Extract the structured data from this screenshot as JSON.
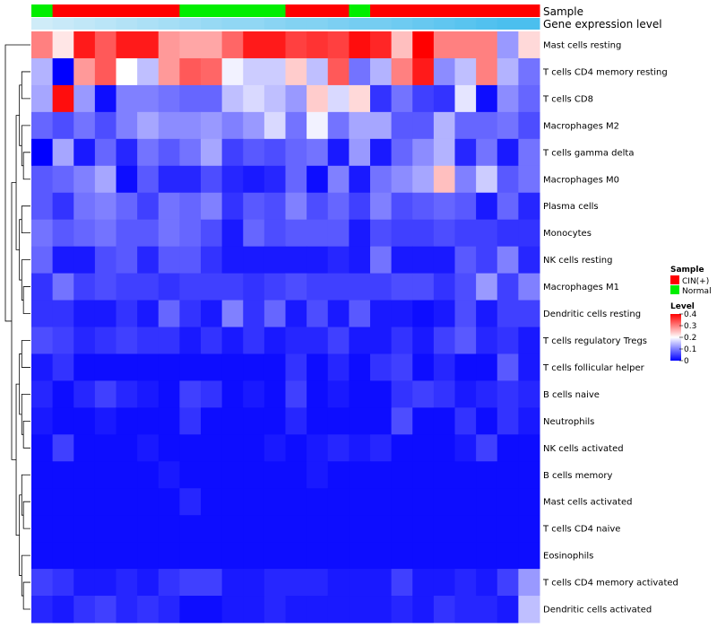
{
  "chart_data": {
    "type": "heatmap",
    "title": "",
    "annotation_tracks": [
      "Sample",
      "Gene expression level"
    ],
    "sample_groups": [
      "Normal",
      "CIN(+)",
      "CIN(+)",
      "CIN(+)",
      "CIN(+)",
      "CIN(+)",
      "CIN(+)",
      "Normal",
      "Normal",
      "Normal",
      "Normal",
      "Normal",
      "CIN(+)",
      "CIN(+)",
      "CIN(+)",
      "Normal",
      "CIN(+)",
      "CIN(+)",
      "CIN(+)",
      "CIN(+)",
      "CIN(+)",
      "CIN(+)",
      "CIN(+)",
      "CIN(+)"
    ],
    "gene_expression_level": [
      0.05,
      0.1,
      0.15,
      0.2,
      0.25,
      0.3,
      0.35,
      0.4,
      0.45,
      0.5,
      0.5,
      0.55,
      0.6,
      0.6,
      0.65,
      0.7,
      0.7,
      0.75,
      0.8,
      0.85,
      0.9,
      0.95,
      1.0,
      1.0
    ],
    "rows": [
      "Mast cells resting",
      "T cells CD4 memory resting",
      "T cells CD8",
      "Macrophages M2",
      "T cells gamma delta",
      "Macrophages M0",
      "Plasma cells",
      "Monocytes",
      "NK cells resting",
      "Macrophages M1",
      "Dendritic cells resting",
      "T cells regulatory  Tregs",
      "T cells follicular helper",
      "B cells naive",
      "Neutrophils",
      "NK cells activated",
      "B cells memory",
      "Mast cells activated",
      "T cells CD4 naive",
      "Eosinophils",
      "T cells CD4 memory activated",
      "Dendritic cells activated"
    ],
    "values": [
      [
        0.3,
        0.22,
        0.38,
        0.33,
        0.38,
        0.38,
        0.28,
        0.27,
        0.27,
        0.32,
        0.38,
        0.38,
        0.35,
        0.36,
        0.35,
        0.39,
        0.37,
        0.25,
        0.4,
        0.3,
        0.3,
        0.3,
        0.12,
        0.23
      ],
      [
        0.14,
        0.0,
        0.28,
        0.33,
        0.2,
        0.15,
        0.28,
        0.33,
        0.32,
        0.19,
        0.16,
        0.16,
        0.24,
        0.15,
        0.33,
        0.09,
        0.14,
        0.3,
        0.38,
        0.11,
        0.15,
        0.3,
        0.14,
        0.09
      ],
      [
        0.13,
        0.39,
        0.12,
        0.01,
        0.1,
        0.1,
        0.09,
        0.08,
        0.08,
        0.15,
        0.17,
        0.15,
        0.12,
        0.24,
        0.17,
        0.23,
        0.04,
        0.09,
        0.05,
        0.04,
        0.18,
        0.01,
        0.11,
        0.08
      ],
      [
        0.08,
        0.06,
        0.09,
        0.06,
        0.1,
        0.13,
        0.11,
        0.11,
        0.12,
        0.1,
        0.12,
        0.17,
        0.09,
        0.19,
        0.09,
        0.13,
        0.13,
        0.07,
        0.07,
        0.14,
        0.08,
        0.08,
        0.09,
        0.06
      ],
      [
        0.0,
        0.13,
        0.02,
        0.08,
        0.03,
        0.09,
        0.07,
        0.09,
        0.13,
        0.05,
        0.07,
        0.06,
        0.08,
        0.09,
        0.02,
        0.12,
        0.02,
        0.08,
        0.11,
        0.14,
        0.03,
        0.09,
        0.02,
        0.09
      ],
      [
        0.07,
        0.08,
        0.1,
        0.13,
        0.01,
        0.07,
        0.03,
        0.03,
        0.06,
        0.03,
        0.02,
        0.03,
        0.08,
        0.01,
        0.1,
        0.02,
        0.09,
        0.11,
        0.13,
        0.25,
        0.1,
        0.16,
        0.07,
        0.09
      ],
      [
        0.07,
        0.04,
        0.09,
        0.1,
        0.08,
        0.05,
        0.09,
        0.08,
        0.1,
        0.04,
        0.07,
        0.06,
        0.1,
        0.06,
        0.08,
        0.05,
        0.1,
        0.06,
        0.07,
        0.08,
        0.07,
        0.02,
        0.08,
        0.03
      ],
      [
        0.09,
        0.07,
        0.08,
        0.09,
        0.07,
        0.07,
        0.09,
        0.08,
        0.06,
        0.02,
        0.08,
        0.06,
        0.07,
        0.07,
        0.07,
        0.02,
        0.06,
        0.05,
        0.05,
        0.06,
        0.05,
        0.05,
        0.04,
        0.04
      ],
      [
        0.08,
        0.02,
        0.02,
        0.06,
        0.07,
        0.03,
        0.07,
        0.07,
        0.04,
        0.02,
        0.02,
        0.02,
        0.02,
        0.02,
        0.03,
        0.02,
        0.09,
        0.02,
        0.02,
        0.02,
        0.07,
        0.05,
        0.1,
        0.03
      ],
      [
        0.04,
        0.09,
        0.05,
        0.06,
        0.05,
        0.05,
        0.04,
        0.05,
        0.05,
        0.05,
        0.04,
        0.05,
        0.06,
        0.05,
        0.05,
        0.05,
        0.05,
        0.06,
        0.06,
        0.04,
        0.06,
        0.12,
        0.05,
        0.1
      ],
      [
        0.04,
        0.04,
        0.02,
        0.02,
        0.04,
        0.02,
        0.08,
        0.04,
        0.02,
        0.1,
        0.04,
        0.08,
        0.02,
        0.06,
        0.02,
        0.07,
        0.02,
        0.02,
        0.01,
        0.02,
        0.06,
        0.02,
        0.05,
        0.05
      ],
      [
        0.06,
        0.05,
        0.03,
        0.04,
        0.05,
        0.04,
        0.04,
        0.02,
        0.04,
        0.02,
        0.04,
        0.02,
        0.03,
        0.03,
        0.05,
        0.02,
        0.02,
        0.04,
        0.02,
        0.05,
        0.07,
        0.03,
        0.04,
        0.02
      ],
      [
        0.02,
        0.04,
        0.01,
        0.01,
        0.01,
        0.01,
        0.01,
        0.01,
        0.01,
        0.01,
        0.01,
        0.01,
        0.04,
        0.01,
        0.03,
        0.01,
        0.04,
        0.05,
        0.01,
        0.03,
        0.01,
        0.01,
        0.07,
        0.02
      ],
      [
        0.03,
        0.01,
        0.03,
        0.05,
        0.03,
        0.02,
        0.01,
        0.05,
        0.04,
        0.01,
        0.02,
        0.01,
        0.05,
        0.01,
        0.02,
        0.01,
        0.01,
        0.04,
        0.05,
        0.04,
        0.02,
        0.03,
        0.04,
        0.03
      ],
      [
        0.02,
        0.01,
        0.01,
        0.02,
        0.01,
        0.01,
        0.01,
        0.04,
        0.01,
        0.01,
        0.01,
        0.01,
        0.03,
        0.01,
        0.01,
        0.01,
        0.01,
        0.06,
        0.01,
        0.01,
        0.04,
        0.01,
        0.04,
        0.02
      ],
      [
        0.01,
        0.05,
        0.01,
        0.01,
        0.01,
        0.02,
        0.01,
        0.01,
        0.01,
        0.01,
        0.01,
        0.02,
        0.01,
        0.02,
        0.03,
        0.02,
        0.03,
        0.01,
        0.01,
        0.01,
        0.02,
        0.05,
        0.01,
        0.01
      ],
      [
        0.01,
        0.01,
        0.01,
        0.01,
        0.01,
        0.01,
        0.02,
        0.01,
        0.01,
        0.01,
        0.01,
        0.01,
        0.01,
        0.02,
        0.01,
        0.01,
        0.01,
        0.01,
        0.01,
        0.01,
        0.01,
        0.01,
        0.01,
        0.01
      ],
      [
        0.01,
        0.01,
        0.01,
        0.01,
        0.01,
        0.01,
        0.01,
        0.03,
        0.01,
        0.01,
        0.01,
        0.01,
        0.01,
        0.01,
        0.01,
        0.01,
        0.01,
        0.01,
        0.01,
        0.01,
        0.01,
        0.01,
        0.01,
        0.01
      ],
      [
        0.01,
        0.01,
        0.01,
        0.01,
        0.01,
        0.01,
        0.01,
        0.01,
        0.01,
        0.01,
        0.01,
        0.01,
        0.01,
        0.01,
        0.01,
        0.01,
        0.01,
        0.01,
        0.01,
        0.01,
        0.01,
        0.01,
        0.01,
        0.01
      ],
      [
        0.01,
        0.01,
        0.01,
        0.01,
        0.01,
        0.01,
        0.01,
        0.01,
        0.01,
        0.01,
        0.01,
        0.01,
        0.01,
        0.01,
        0.01,
        0.01,
        0.01,
        0.01,
        0.01,
        0.01,
        0.01,
        0.01,
        0.01,
        0.01
      ],
      [
        0.05,
        0.04,
        0.02,
        0.02,
        0.03,
        0.02,
        0.04,
        0.05,
        0.05,
        0.02,
        0.02,
        0.03,
        0.03,
        0.03,
        0.02,
        0.02,
        0.02,
        0.05,
        0.02,
        0.02,
        0.03,
        0.02,
        0.05,
        0.12
      ],
      [
        0.03,
        0.02,
        0.04,
        0.05,
        0.03,
        0.04,
        0.03,
        0.01,
        0.01,
        0.02,
        0.02,
        0.03,
        0.02,
        0.02,
        0.02,
        0.02,
        0.02,
        0.03,
        0.02,
        0.04,
        0.03,
        0.03,
        0.02,
        0.15
      ]
    ],
    "legend": {
      "sample_title": "Sample",
      "groups": [
        {
          "name": "CIN(+)",
          "color": "#ff0000"
        },
        {
          "name": "Normal",
          "color": "#00ee00"
        }
      ],
      "level_title": "Level",
      "ticks": [
        0.4,
        0.3,
        0.2,
        0.1,
        0
      ],
      "range": [
        0,
        0.4
      ]
    },
    "colors": {
      "low": "#0000ff",
      "mid": "#ffffff",
      "high": "#ff0000",
      "mid_value": 0.2,
      "annot_light": "#d6eef9",
      "annot_dark": "#4bbfee"
    }
  }
}
